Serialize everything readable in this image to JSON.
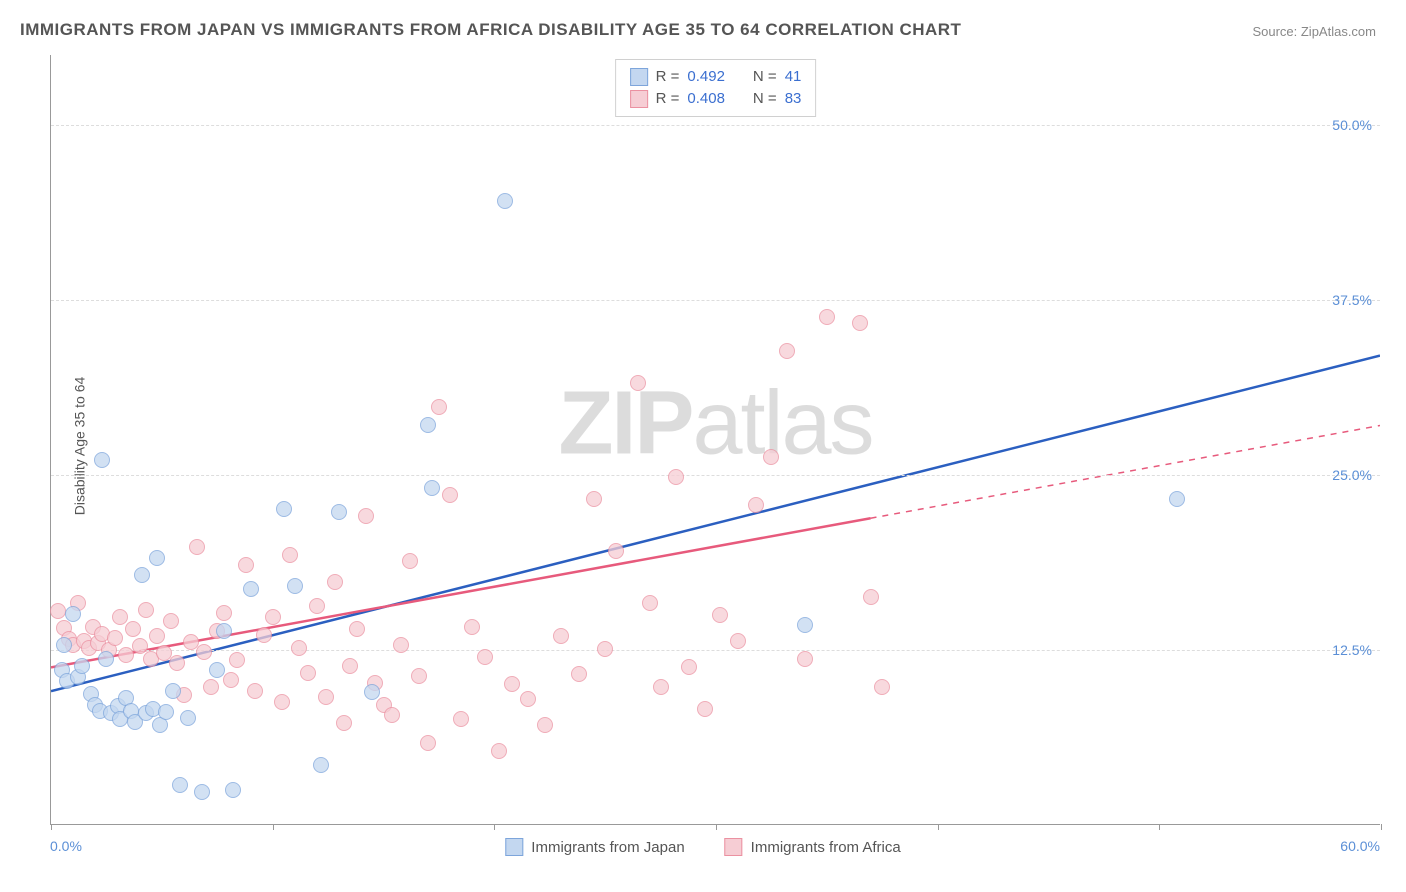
{
  "title": "IMMIGRANTS FROM JAPAN VS IMMIGRANTS FROM AFRICA DISABILITY AGE 35 TO 64 CORRELATION CHART",
  "source_prefix": "Source: ",
  "source_name": "ZipAtlas.com",
  "ylabel": "Disability Age 35 to 64",
  "watermark_a": "ZIP",
  "watermark_b": "atlas",
  "chart": {
    "type": "scatter",
    "xlim": [
      0,
      60
    ],
    "ylim": [
      0,
      55
    ],
    "xlim_label_left": "0.0%",
    "xlim_label_right": "60.0%",
    "xtick_positions": [
      0,
      10,
      20,
      30,
      40,
      50,
      60
    ],
    "yticks": [
      {
        "value": 12.5,
        "label": "12.5%"
      },
      {
        "value": 25.0,
        "label": "25.0%"
      },
      {
        "value": 37.5,
        "label": "37.5%"
      },
      {
        "value": 50.0,
        "label": "50.0%"
      }
    ],
    "grid_color": "#dddddd",
    "background_color": "#ffffff",
    "series": [
      {
        "key": "japan",
        "label": "Immigrants from Japan",
        "fill": "#c3d7f0",
        "stroke": "#7da5db",
        "trend_color": "#2b5fc0",
        "trend_width": 2.5,
        "r_label": "R  =",
        "r_value": "0.492",
        "n_label": "N  =",
        "n_value": "41",
        "trend": {
          "x1": 0,
          "y1": 9.5,
          "x2": 60,
          "y2": 33.5,
          "solid_until_x": 60
        },
        "points": [
          [
            0.5,
            11
          ],
          [
            0.6,
            12.8
          ],
          [
            0.7,
            10.2
          ],
          [
            1,
            15
          ],
          [
            1.2,
            10.5
          ],
          [
            1.4,
            11.3
          ],
          [
            1.8,
            9.3
          ],
          [
            2,
            8.5
          ],
          [
            2.2,
            8.1
          ],
          [
            2.3,
            26
          ],
          [
            2.5,
            11.8
          ],
          [
            2.7,
            7.9
          ],
          [
            3,
            8.4
          ],
          [
            3.1,
            7.5
          ],
          [
            3.4,
            9
          ],
          [
            3.6,
            8.1
          ],
          [
            3.8,
            7.3
          ],
          [
            4.1,
            17.8
          ],
          [
            4.3,
            7.9
          ],
          [
            4.6,
            8.2
          ],
          [
            4.8,
            19
          ],
          [
            4.9,
            7.1
          ],
          [
            5.2,
            8
          ],
          [
            5.5,
            9.5
          ],
          [
            5.8,
            2.8
          ],
          [
            6.2,
            7.6
          ],
          [
            6.8,
            2.3
          ],
          [
            7.5,
            11
          ],
          [
            7.8,
            13.8
          ],
          [
            8.2,
            2.4
          ],
          [
            9,
            16.8
          ],
          [
            10.5,
            22.5
          ],
          [
            11,
            17
          ],
          [
            12.2,
            4.2
          ],
          [
            13,
            22.3
          ],
          [
            14.5,
            9.4
          ],
          [
            17,
            28.5
          ],
          [
            17.2,
            24
          ],
          [
            20.5,
            44.5
          ],
          [
            34,
            14.2
          ],
          [
            50.8,
            23.2
          ]
        ]
      },
      {
        "key": "africa",
        "label": "Immigrants from Africa",
        "fill": "#f6cdd4",
        "stroke": "#eb91a1",
        "trend_color": "#e75a7c",
        "trend_width": 2.5,
        "r_label": "R  =",
        "r_value": "0.408",
        "n_label": "N  =",
        "n_value": "83",
        "trend": {
          "x1": 0,
          "y1": 11.2,
          "x2": 60,
          "y2": 28.5,
          "solid_until_x": 37
        },
        "points": [
          [
            0.3,
            15.2
          ],
          [
            0.6,
            14
          ],
          [
            0.8,
            13.2
          ],
          [
            1,
            12.8
          ],
          [
            1.2,
            15.8
          ],
          [
            1.5,
            13.1
          ],
          [
            1.7,
            12.6
          ],
          [
            1.9,
            14.1
          ],
          [
            2.1,
            12.9
          ],
          [
            2.3,
            13.6
          ],
          [
            2.6,
            12.4
          ],
          [
            2.9,
            13.3
          ],
          [
            3.1,
            14.8
          ],
          [
            3.4,
            12.1
          ],
          [
            3.7,
            13.9
          ],
          [
            4,
            12.7
          ],
          [
            4.3,
            15.3
          ],
          [
            4.5,
            11.8
          ],
          [
            4.8,
            13.4
          ],
          [
            5.1,
            12.2
          ],
          [
            5.4,
            14.5
          ],
          [
            5.7,
            11.5
          ],
          [
            6,
            9.2
          ],
          [
            6.3,
            13
          ],
          [
            6.6,
            19.8
          ],
          [
            6.9,
            12.3
          ],
          [
            7.2,
            9.8
          ],
          [
            7.5,
            13.8
          ],
          [
            7.8,
            15.1
          ],
          [
            8.1,
            10.3
          ],
          [
            8.4,
            11.7
          ],
          [
            8.8,
            18.5
          ],
          [
            9.2,
            9.5
          ],
          [
            9.6,
            13.5
          ],
          [
            10,
            14.8
          ],
          [
            10.4,
            8.7
          ],
          [
            10.8,
            19.2
          ],
          [
            11.2,
            12.6
          ],
          [
            11.6,
            10.8
          ],
          [
            12,
            15.6
          ],
          [
            12.4,
            9.1
          ],
          [
            12.8,
            17.3
          ],
          [
            13.2,
            7.2
          ],
          [
            13.5,
            11.3
          ],
          [
            13.8,
            13.9
          ],
          [
            14.2,
            22
          ],
          [
            14.6,
            10.1
          ],
          [
            15,
            8.5
          ],
          [
            15.4,
            7.8
          ],
          [
            15.8,
            12.8
          ],
          [
            16.2,
            18.8
          ],
          [
            16.6,
            10.6
          ],
          [
            17,
            5.8
          ],
          [
            17.5,
            29.8
          ],
          [
            18,
            23.5
          ],
          [
            18.5,
            7.5
          ],
          [
            19,
            14.1
          ],
          [
            19.6,
            11.9
          ],
          [
            20.2,
            5.2
          ],
          [
            20.8,
            10
          ],
          [
            21.5,
            8.9
          ],
          [
            22.3,
            7.1
          ],
          [
            23,
            13.4
          ],
          [
            23.8,
            10.7
          ],
          [
            24.5,
            23.2
          ],
          [
            25,
            12.5
          ],
          [
            25.5,
            19.5
          ],
          [
            26.5,
            31.5
          ],
          [
            27,
            15.8
          ],
          [
            27.5,
            9.8
          ],
          [
            28.2,
            24.8
          ],
          [
            28.8,
            11.2
          ],
          [
            29.5,
            8.2
          ],
          [
            30.2,
            14.9
          ],
          [
            31,
            13.1
          ],
          [
            31.8,
            22.8
          ],
          [
            32.5,
            26.2
          ],
          [
            33.2,
            33.8
          ],
          [
            34,
            11.8
          ],
          [
            35,
            36.2
          ],
          [
            36.5,
            35.8
          ],
          [
            37,
            16.2
          ],
          [
            37.5,
            9.8
          ]
        ]
      }
    ]
  }
}
